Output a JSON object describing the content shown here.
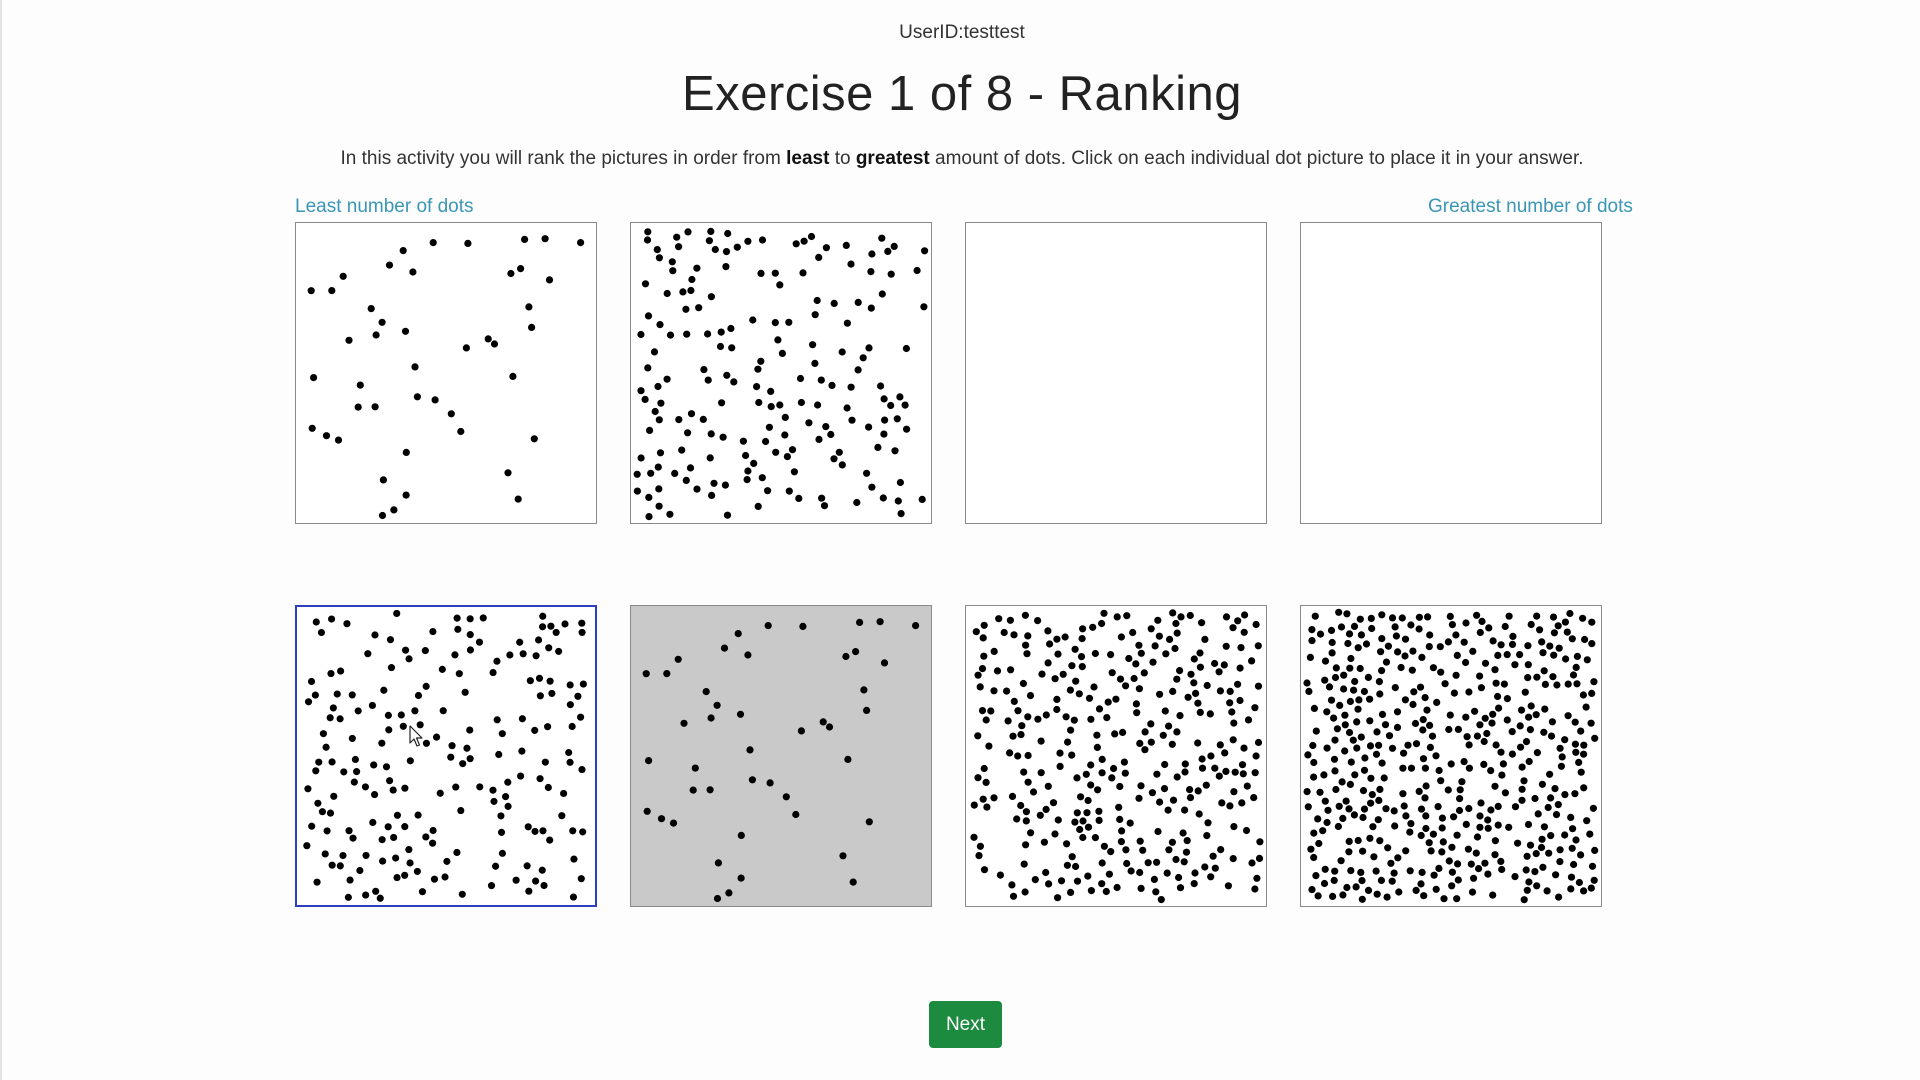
{
  "header": {
    "user_id": "UserID:testtest",
    "title": "Exercise 1 of 8 - Ranking"
  },
  "instructions": {
    "part1": "In this activity you will rank the pictures in order from ",
    "least": "least",
    "part2": " to ",
    "greatest": "greatest",
    "part3": " amount of dots. Click on each individual dot picture to place it in your answer."
  },
  "labels": {
    "least": "Least number of dots",
    "greatest": "Greatest number of dots"
  },
  "answer_slots": [
    {
      "state": "filled",
      "dot_density": "sparse"
    },
    {
      "state": "filled",
      "dot_density": "medium"
    },
    {
      "state": "empty"
    },
    {
      "state": "empty"
    }
  ],
  "choices": [
    {
      "state": "available",
      "dot_density": "medium",
      "highlighted": true
    },
    {
      "state": "used",
      "dot_density": "sparse"
    },
    {
      "state": "available",
      "dot_density": "dense"
    },
    {
      "state": "available",
      "dot_density": "very dense"
    }
  ],
  "buttons": {
    "next": "Next"
  },
  "colors": {
    "link": "#3a96b5",
    "next_button": "#1c8b3f",
    "selected_border": "#2d3fbf",
    "used_picture_bg": "#c9c9c9"
  },
  "icons": [
    "mouse-pointer-icon"
  ]
}
